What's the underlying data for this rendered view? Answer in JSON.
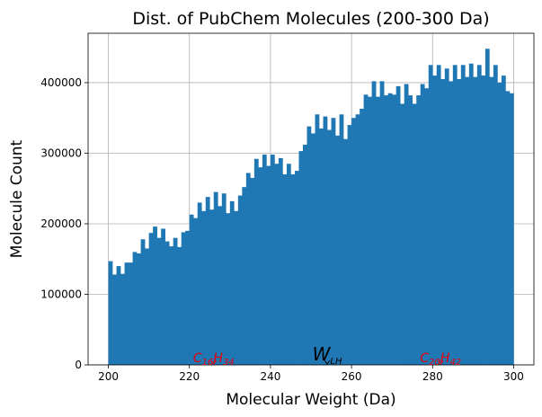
{
  "chart_data": {
    "type": "bar",
    "title": "Dist. of PubChem Molecules (200-300 Da)",
    "xlabel": "Molecular Weight (Da)",
    "ylabel": "Molecule Count",
    "xlim": [
      195,
      305
    ],
    "ylim": [
      0,
      470000
    ],
    "xticks": [
      200,
      220,
      240,
      260,
      280,
      300
    ],
    "yticks": [
      0,
      100000,
      200000,
      300000,
      400000
    ],
    "grid": true,
    "bar_color": "#1f77b4",
    "bin_start": 200,
    "bin_width": 1,
    "values": [
      147000,
      128000,
      140000,
      129000,
      145000,
      145000,
      160000,
      158000,
      178000,
      165000,
      187000,
      196000,
      180000,
      193000,
      175000,
      168000,
      180000,
      167000,
      188000,
      190000,
      213000,
      208000,
      230000,
      218000,
      238000,
      220000,
      245000,
      225000,
      243000,
      215000,
      232000,
      218000,
      240000,
      252000,
      272000,
      265000,
      292000,
      280000,
      298000,
      282000,
      298000,
      285000,
      293000,
      270000,
      285000,
      270000,
      275000,
      303000,
      312000,
      338000,
      328000,
      355000,
      335000,
      352000,
      333000,
      350000,
      325000,
      355000,
      320000,
      340000,
      350000,
      355000,
      363000,
      383000,
      380000,
      402000,
      380000,
      402000,
      382000,
      385000,
      383000,
      395000,
      370000,
      398000,
      382000,
      370000,
      382000,
      398000,
      392000,
      425000,
      410000,
      425000,
      405000,
      420000,
      402000,
      425000,
      405000,
      425000,
      408000,
      427000,
      408000,
      425000,
      410000,
      448000,
      408000,
      425000,
      400000,
      410000,
      388000,
      385000
    ],
    "annotations": [
      {
        "base": "C",
        "sub1": "16",
        "mid": "H",
        "sub2": "34",
        "x": 226,
        "color": "#e8000b"
      },
      {
        "base": "W",
        "sub1": "LH",
        "x": 254,
        "color": "#000000"
      },
      {
        "base": "C",
        "sub1": "20",
        "mid": "H",
        "sub2": "42",
        "x": 282,
        "color": "#e8000b"
      }
    ]
  }
}
